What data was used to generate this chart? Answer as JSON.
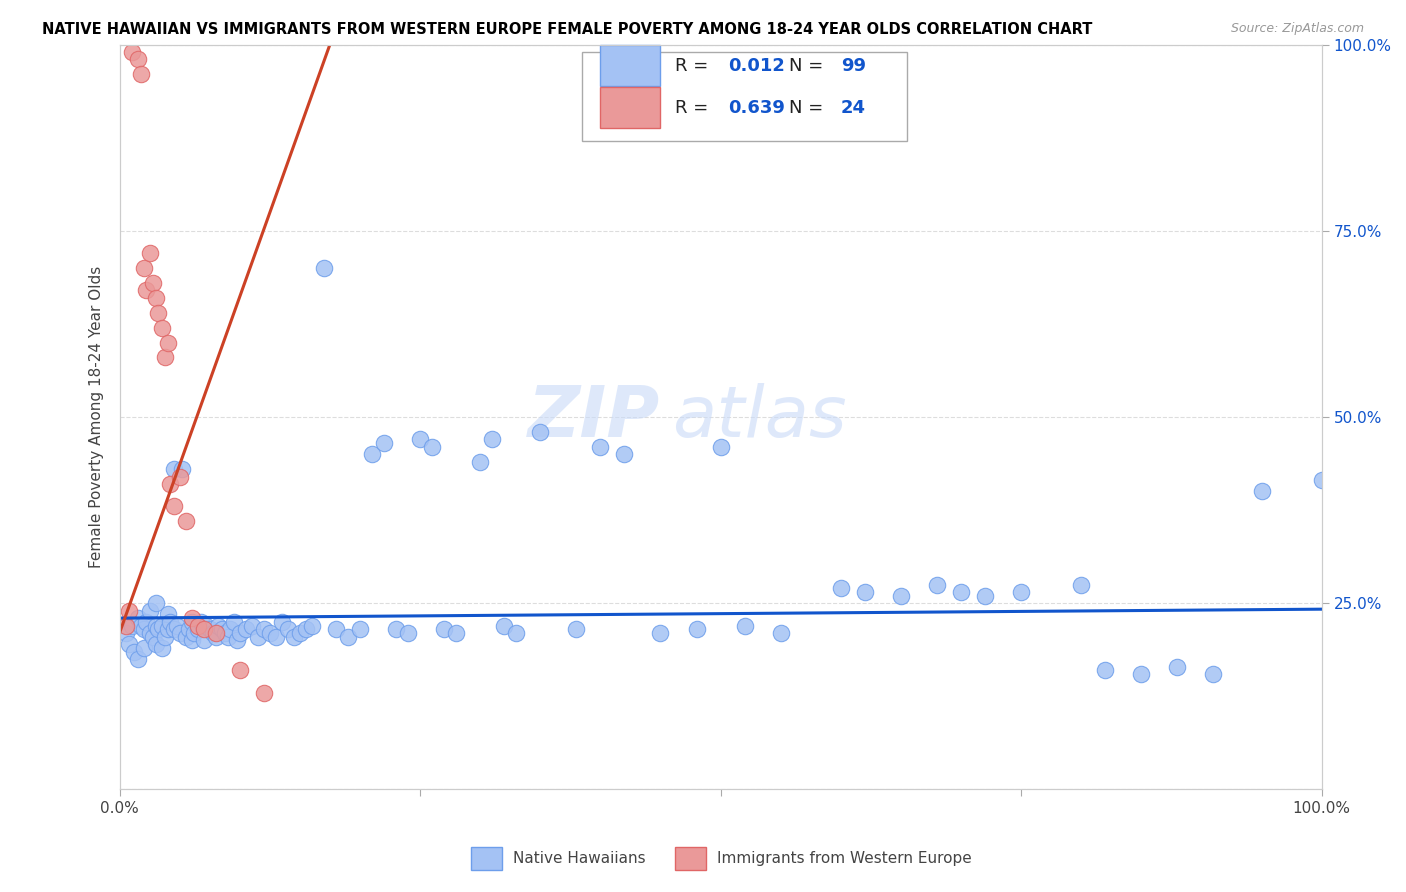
{
  "title": "NATIVE HAWAIIAN VS IMMIGRANTS FROM WESTERN EUROPE FEMALE POVERTY AMONG 18-24 YEAR OLDS CORRELATION CHART",
  "source": "Source: ZipAtlas.com",
  "ylabel": "Female Poverty Among 18-24 Year Olds",
  "xlim": [
    0,
    1
  ],
  "ylim": [
    0,
    1
  ],
  "blue_color": "#a4c2f4",
  "blue_edge_color": "#6d9eeb",
  "pink_color": "#ea9999",
  "pink_edge_color": "#e06666",
  "blue_line_color": "#1155cc",
  "pink_line_color": "#cc4125",
  "R_blue": "0.012",
  "N_blue": "99",
  "R_pink": "0.639",
  "N_pink": "24",
  "legend_label_blue": "Native Hawaiians",
  "legend_label_pink": "Immigrants from Western Europe",
  "blue_scatter_x": [
    0.005,
    0.008,
    0.01,
    0.012,
    0.015,
    0.015,
    0.018,
    0.02,
    0.02,
    0.022,
    0.025,
    0.025,
    0.028,
    0.03,
    0.03,
    0.03,
    0.032,
    0.035,
    0.035,
    0.038,
    0.04,
    0.04,
    0.042,
    0.045,
    0.045,
    0.048,
    0.05,
    0.052,
    0.055,
    0.058,
    0.06,
    0.06,
    0.062,
    0.065,
    0.068,
    0.07,
    0.072,
    0.075,
    0.078,
    0.08,
    0.082,
    0.085,
    0.088,
    0.09,
    0.092,
    0.095,
    0.098,
    0.1,
    0.105,
    0.11,
    0.115,
    0.12,
    0.125,
    0.13,
    0.135,
    0.14,
    0.145,
    0.15,
    0.155,
    0.16,
    0.17,
    0.18,
    0.19,
    0.2,
    0.21,
    0.22,
    0.23,
    0.24,
    0.25,
    0.26,
    0.27,
    0.28,
    0.3,
    0.31,
    0.32,
    0.33,
    0.35,
    0.38,
    0.4,
    0.42,
    0.45,
    0.48,
    0.5,
    0.52,
    0.55,
    0.6,
    0.62,
    0.65,
    0.68,
    0.7,
    0.72,
    0.75,
    0.8,
    0.82,
    0.85,
    0.88,
    0.91,
    0.95,
    1.0
  ],
  "blue_scatter_y": [
    0.21,
    0.195,
    0.22,
    0.185,
    0.23,
    0.175,
    0.22,
    0.215,
    0.19,
    0.225,
    0.21,
    0.24,
    0.205,
    0.22,
    0.195,
    0.25,
    0.215,
    0.22,
    0.19,
    0.205,
    0.215,
    0.235,
    0.225,
    0.43,
    0.215,
    0.22,
    0.21,
    0.43,
    0.205,
    0.215,
    0.2,
    0.225,
    0.21,
    0.215,
    0.225,
    0.2,
    0.22,
    0.215,
    0.21,
    0.205,
    0.22,
    0.215,
    0.21,
    0.205,
    0.215,
    0.225,
    0.2,
    0.21,
    0.215,
    0.22,
    0.205,
    0.215,
    0.21,
    0.205,
    0.225,
    0.215,
    0.205,
    0.21,
    0.215,
    0.22,
    0.7,
    0.215,
    0.205,
    0.215,
    0.45,
    0.465,
    0.215,
    0.21,
    0.47,
    0.46,
    0.215,
    0.21,
    0.44,
    0.47,
    0.22,
    0.21,
    0.48,
    0.215,
    0.46,
    0.45,
    0.21,
    0.215,
    0.46,
    0.22,
    0.21,
    0.27,
    0.265,
    0.26,
    0.275,
    0.265,
    0.26,
    0.265,
    0.275,
    0.16,
    0.155,
    0.165,
    0.155,
    0.4,
    0.415
  ],
  "pink_scatter_x": [
    0.005,
    0.008,
    0.01,
    0.015,
    0.018,
    0.02,
    0.022,
    0.025,
    0.028,
    0.03,
    0.032,
    0.035,
    0.038,
    0.04,
    0.042,
    0.045,
    0.05,
    0.055,
    0.06,
    0.065,
    0.07,
    0.08,
    0.1,
    0.12
  ],
  "pink_scatter_y": [
    0.22,
    0.24,
    0.99,
    0.98,
    0.96,
    0.7,
    0.67,
    0.72,
    0.68,
    0.66,
    0.64,
    0.62,
    0.58,
    0.6,
    0.41,
    0.38,
    0.42,
    0.36,
    0.23,
    0.22,
    0.215,
    0.21,
    0.16,
    0.13
  ],
  "blue_line_x": [
    0.0,
    1.0
  ],
  "blue_line_y": [
    0.23,
    0.242
  ],
  "pink_line_x": [
    0.0,
    0.175
  ],
  "pink_line_y": [
    0.21,
    1.0
  ]
}
